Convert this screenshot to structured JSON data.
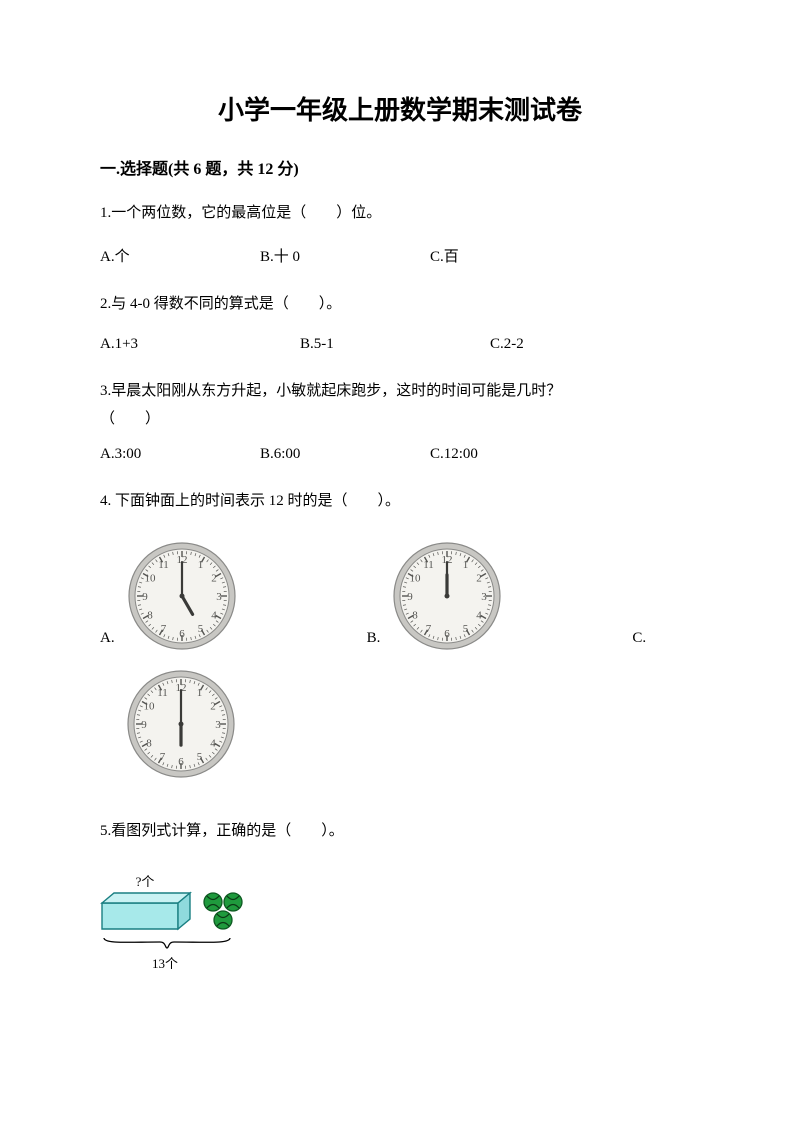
{
  "colors": {
    "text": "#000000",
    "bg": "#ffffff",
    "clock_rim": "#8a8a88",
    "clock_rim_light": "#c8c7c3",
    "clock_face": "#f4f3ef",
    "clock_num": "#555552",
    "clock_hand": "#3a3a38",
    "box_fill": "#a7e9ea",
    "box_stroke": "#1a7f82",
    "ball_fill": "#1f9a3d",
    "ball_stroke": "#0e5a22",
    "ball_arc": "#0c3a16"
  },
  "typography": {
    "title_fontsize": 26,
    "body_fontsize": 15,
    "section_fontsize": 16
  },
  "title": "小学一年级上册数学期末测试卷",
  "section1": {
    "header": "一.选择题(共 6 题，共 12 分)",
    "q1": {
      "stem": "1.一个两位数，它的最高位是（　　）位。",
      "a": "A.个",
      "b": "B.十  0",
      "c": "C.百"
    },
    "q2": {
      "stem": "2.与 4-0 得数不同的算式是（　　）。",
      "a": "A.1+3",
      "b": "B.5-1",
      "c": "C.2-2"
    },
    "q3": {
      "stem": "3.早晨太阳刚从东方升起，小敏就起床跑步，这时的时间可能是几时？",
      "blank": "（　　）",
      "a": "A.3:00",
      "b": "B.6:00",
      "c": "C.12:00"
    },
    "q4": {
      "stem": "4. 下面钟面上的时间表示 12 时的是（　　）。",
      "a": "A.",
      "b": "B.",
      "c": "C.",
      "clock_size": 110,
      "clocks": [
        {
          "hour_angle": 150,
          "minute_angle": 0
        },
        {
          "hour_angle": 0,
          "minute_angle": 0
        },
        {
          "hour_angle": 180,
          "minute_angle": 0
        }
      ]
    },
    "q5": {
      "stem": "5.看图列式计算，正确的是（　　）。",
      "top_label": "?个",
      "bottom_label": "13个",
      "ball_count": 3
    }
  }
}
